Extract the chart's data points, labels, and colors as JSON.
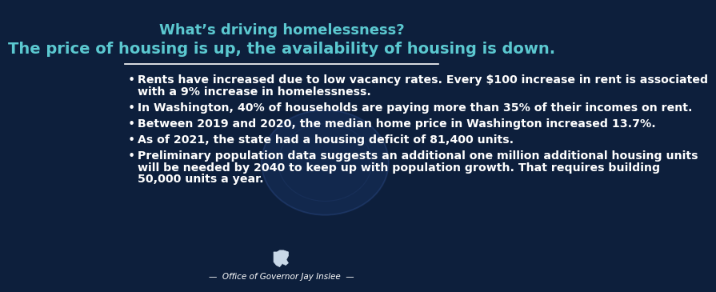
{
  "bg_color": "#0d1f3c",
  "title1": "What’s driving homelessness?",
  "title1_color": "#5bc8d0",
  "title2": "The price of housing is up, the availability of housing is down.",
  "title2_color": "#5bc8d0",
  "rule_color": "#ffffff",
  "bullet_color": "#ffffff",
  "bullet_points": [
    "Rents have increased due to low vacancy rates. Every $100 increase in rent is associated\nwith a 9% increase in homelessness.",
    "In Washington, 40% of households are paying more than 35% of their incomes on rent.",
    "Between 2019 and 2020, the median home price in Washington increased 13.7%.",
    "As of 2021, the state had a housing deficit of 81,400 units.",
    "Preliminary population data suggests an additional one million additional housing units\nwill be needed by 2040 to keep up with population growth. That requires building\n50,000 units a year."
  ],
  "footer_text": "—  Office of Governor Jay Inslee  —",
  "footer_color": "#ffffff",
  "title1_fontsize": 13,
  "title2_fontsize": 14,
  "bullet_fontsize": 10.2,
  "footer_fontsize": 7.5,
  "seal_color": "#1e3a6e",
  "seal_alpha": 0.35,
  "wa_color": "#c8d8e8"
}
